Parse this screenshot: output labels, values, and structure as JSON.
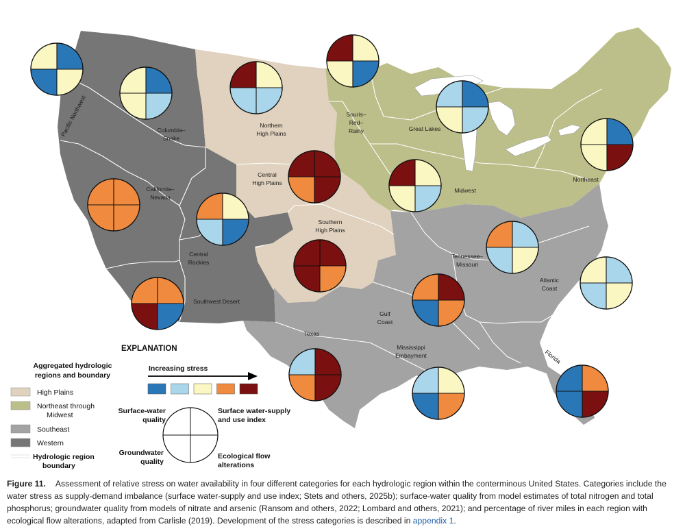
{
  "colors": {
    "stress_1": "#2a77b8",
    "stress_2": "#a9d6ea",
    "stress_3": "#fbf7c3",
    "stress_4": "#f08a3e",
    "stress_5": "#7a1010",
    "high_plains": "#e0d2be",
    "northeast_midwest": "#bcbf8a",
    "southeast": "#a3a3a3",
    "western": "#767676",
    "boundary": "#ffffff"
  },
  "map_labels": {
    "pacific_northwest": "Pacific Northwest",
    "columbia_snake": [
      "Columbia–",
      "Snake"
    ],
    "california_nevada": [
      "California–",
      "Nevada"
    ],
    "central_rockies": [
      "Central",
      "Rockies"
    ],
    "southwest_desert": "Southwest Desert",
    "northern_high_plains": [
      "Northern",
      "High Plains"
    ],
    "central_high_plains": [
      "Central",
      "High Plains"
    ],
    "southern_high_plains": [
      "Southern",
      "High Plains"
    ],
    "texas": "Texas",
    "souris_red_rainy": [
      "Souris–",
      "Red–",
      "Rainy"
    ],
    "great_lakes": "Great Lakes",
    "midwest": "Midwest",
    "northeast": "Northeast",
    "tennessee_missouri": [
      "Tennessee–",
      "Missouri"
    ],
    "atlantic_coast": [
      "Atlantic",
      "Coast"
    ],
    "gulf_coast": [
      "Gulf",
      "Coast"
    ],
    "mississippi_embayment": [
      "Mississippi",
      "Embayment"
    ],
    "florida": "Florida"
  },
  "stress_pies": [
    {
      "region": "Pacific Northwest",
      "sw_quality": 3,
      "sw_supply_use": 1,
      "groundwater": 1,
      "eco_flow": 3
    },
    {
      "region": "Columbia–Snake",
      "sw_quality": 3,
      "sw_supply_use": 1,
      "groundwater": 3,
      "eco_flow": 2
    },
    {
      "region": "California–Nevada",
      "sw_quality": 4,
      "sw_supply_use": 4,
      "groundwater": 4,
      "eco_flow": 4
    },
    {
      "region": "Central Rockies",
      "sw_quality": 4,
      "sw_supply_use": 3,
      "groundwater": 2,
      "eco_flow": 1
    },
    {
      "region": "Southwest Desert",
      "sw_quality": 4,
      "sw_supply_use": 4,
      "groundwater": 5,
      "eco_flow": 1
    },
    {
      "region": "Northern High Plains",
      "sw_quality": 5,
      "sw_supply_use": 3,
      "groundwater": 2,
      "eco_flow": 2
    },
    {
      "region": "Souris–Red–Rainy",
      "sw_quality": 5,
      "sw_supply_use": 3,
      "groundwater": 3,
      "eco_flow": 1
    },
    {
      "region": "Central High Plains",
      "sw_quality": 5,
      "sw_supply_use": 5,
      "groundwater": 4,
      "eco_flow": 5
    },
    {
      "region": "Southern High Plains",
      "sw_quality": 5,
      "sw_supply_use": 5,
      "groundwater": 5,
      "eco_flow": 4
    },
    {
      "region": "Great Lakes",
      "sw_quality": 2,
      "sw_supply_use": 1,
      "groundwater": 3,
      "eco_flow": 2
    },
    {
      "region": "Midwest",
      "sw_quality": 5,
      "sw_supply_use": 3,
      "groundwater": 3,
      "eco_flow": 2
    },
    {
      "region": "Northeast",
      "sw_quality": 3,
      "sw_supply_use": 1,
      "groundwater": 3,
      "eco_flow": 5
    },
    {
      "region": "Tennessee–Missouri",
      "sw_quality": 4,
      "sw_supply_use": 2,
      "groundwater": 2,
      "eco_flow": 3
    },
    {
      "region": "Atlantic Coast",
      "sw_quality": 3,
      "sw_supply_use": 2,
      "groundwater": 2,
      "eco_flow": 3
    },
    {
      "region": "Gulf Coast",
      "sw_quality": 4,
      "sw_supply_use": 5,
      "groundwater": 1,
      "eco_flow": 4
    },
    {
      "region": "Texas",
      "sw_quality": 2,
      "sw_supply_use": 5,
      "groundwater": 4,
      "eco_flow": 5
    },
    {
      "region": "Mississippi Embayment",
      "sw_quality": 2,
      "sw_supply_use": 3,
      "groundwater": 1,
      "eco_flow": 4
    },
    {
      "region": "Florida",
      "sw_quality": 1,
      "sw_supply_use": 4,
      "groundwater": 1,
      "eco_flow": 5
    }
  ],
  "legend": {
    "title": "EXPLANATION",
    "regions_heading": [
      "Aggregated hydrologic",
      "regions and boundary"
    ],
    "high_plains": "High Plains",
    "northeast_midwest": [
      "Northeast through",
      "Midwest"
    ],
    "southeast": "Southeast",
    "western": "Western",
    "boundary": [
      "Hydrologic region",
      "boundary"
    ],
    "increasing_stress": "Increasing stress",
    "sw_quality": [
      "Surface-water",
      "quality"
    ],
    "sw_supply": [
      "Surface water-supply",
      "and use index"
    ],
    "groundwater": [
      "Groundwater",
      "quality"
    ],
    "eco_flow": [
      "Ecological flow",
      "alterations"
    ]
  },
  "caption": {
    "label": "Figure 11.",
    "text": "Assessment of relative stress on water availability in four different categories for each hydrologic region within the conterminous United States. Categories include the water stress as supply-demand imbalance (surface water-supply and use index; Stets and others, 2025b); surface-water quality from model estimates of total nitrogen and total phosphorus; groundwater quality from models of nitrate and arsenic (Ransom and others, 2022; Lombard and others, 2021); and percentage of river miles in each region with ecological flow alterations, adapted from Carlisle (2019). Development of the stress categories is described in",
    "link": "appendix 1",
    "end": "."
  }
}
